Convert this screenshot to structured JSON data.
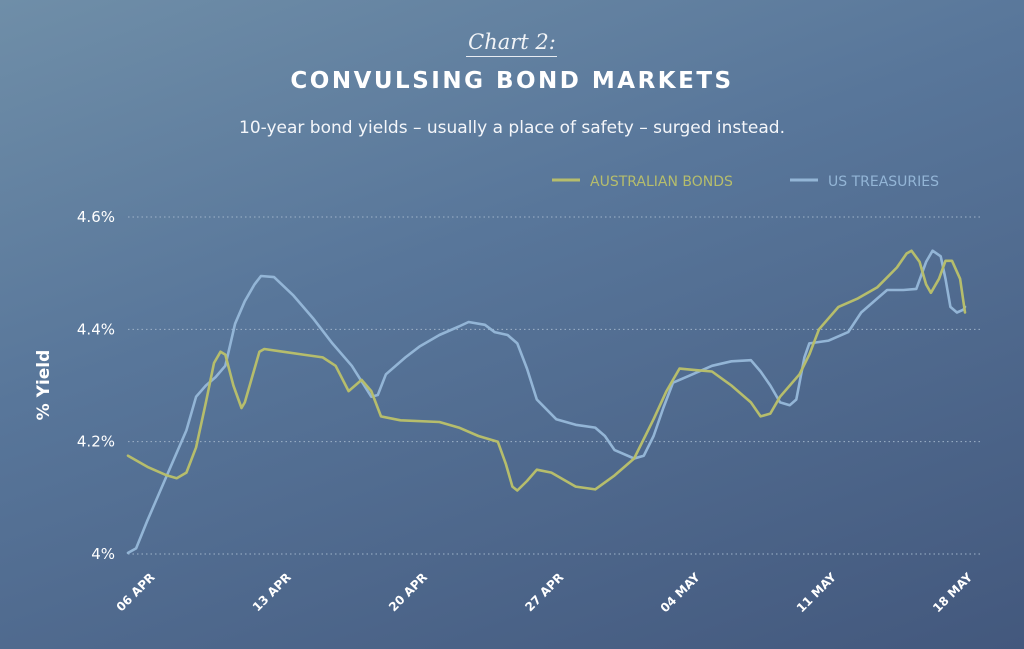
{
  "header": {
    "kicker": "Chart 2:",
    "title": "CONVULSING BOND MARKETS",
    "subtitle": "10-year bond yields – usually a place of safety – surged instead."
  },
  "colors": {
    "australian": "#b6bd6c",
    "us": "#93b5d6",
    "grid": "#9fb3c9",
    "background": "#55739a"
  },
  "chart_data": {
    "type": "line",
    "title": "CONVULSING BOND MARKETS",
    "ylabel": "% Yield",
    "xlabel": "",
    "ylim": [
      4.0,
      4.6
    ],
    "yticks": [
      4.0,
      4.2,
      4.4,
      4.6
    ],
    "ytick_labels": [
      "4%",
      "4.2%",
      "4.4%",
      "4.6%"
    ],
    "xlim": [
      "2025-04-05",
      "2025-05-18"
    ],
    "xticks": [
      "2025-04-06",
      "2025-04-13",
      "2025-04-20",
      "2025-04-27",
      "2025-05-04",
      "2025-05-11",
      "2025-05-18"
    ],
    "xtick_labels": [
      "06 APR",
      "13 APR",
      "20 APR",
      "27 APR",
      "04 MAY",
      "11 MAY",
      "18 MAY"
    ],
    "grid": true,
    "legend_position": "top-right",
    "series": [
      {
        "name": "AUSTRALIAN BONDS",
        "color": "#b6bd6c",
        "points": [
          [
            "2025-04-05",
            4.175
          ],
          [
            "2025-04-06",
            4.155
          ],
          [
            "2025-04-07",
            4.14
          ],
          [
            "2025-04-07 12:00",
            4.135
          ],
          [
            "2025-04-08",
            4.145
          ],
          [
            "2025-04-08 12:00",
            4.19
          ],
          [
            "2025-04-09",
            4.27
          ],
          [
            "2025-04-09 10:00",
            4.34
          ],
          [
            "2025-04-09 18:00",
            4.36
          ],
          [
            "2025-04-10",
            4.355
          ],
          [
            "2025-04-10 10:00",
            4.3
          ],
          [
            "2025-04-10 20:00",
            4.26
          ],
          [
            "2025-04-11",
            4.27
          ],
          [
            "2025-04-11 08:00",
            4.31
          ],
          [
            "2025-04-11 18:00",
            4.36
          ],
          [
            "2025-04-12",
            4.365
          ],
          [
            "2025-04-13",
            4.36
          ],
          [
            "2025-04-14",
            4.355
          ],
          [
            "2025-04-15",
            4.35
          ],
          [
            "2025-04-15 16:00",
            4.335
          ],
          [
            "2025-04-16 08:00",
            4.29
          ],
          [
            "2025-04-17",
            4.31
          ],
          [
            "2025-04-17 12:00",
            4.29
          ],
          [
            "2025-04-18",
            4.245
          ],
          [
            "2025-04-19",
            4.238
          ],
          [
            "2025-04-21",
            4.235
          ],
          [
            "2025-04-22",
            4.225
          ],
          [
            "2025-04-23",
            4.21
          ],
          [
            "2025-04-24",
            4.2
          ],
          [
            "2025-04-24 10:00",
            4.16
          ],
          [
            "2025-04-24 18:00",
            4.12
          ],
          [
            "2025-04-25",
            4.113
          ],
          [
            "2025-04-25 12:00",
            4.13
          ],
          [
            "2025-04-26",
            4.15
          ],
          [
            "2025-04-26 18:00",
            4.145
          ],
          [
            "2025-04-28",
            4.12
          ],
          [
            "2025-04-29",
            4.115
          ],
          [
            "2025-04-30",
            4.14
          ],
          [
            "2025-05-01",
            4.17
          ],
          [
            "2025-05-02",
            4.24
          ],
          [
            "2025-05-02 16:00",
            4.29
          ],
          [
            "2025-05-03 08:00",
            4.33
          ],
          [
            "2025-05-04",
            4.328
          ],
          [
            "2025-05-05",
            4.325
          ],
          [
            "2025-05-06",
            4.3
          ],
          [
            "2025-05-07",
            4.27
          ],
          [
            "2025-05-07 12:00",
            4.245
          ],
          [
            "2025-05-08",
            4.25
          ],
          [
            "2025-05-08 12:00",
            4.28
          ],
          [
            "2025-05-09 12:00",
            4.32
          ],
          [
            "2025-05-10",
            4.355
          ],
          [
            "2025-05-10 12:00",
            4.4
          ],
          [
            "2025-05-11 12:00",
            4.44
          ],
          [
            "2025-05-12 12:00",
            4.455
          ],
          [
            "2025-05-13 12:00",
            4.475
          ],
          [
            "2025-05-14 12:00",
            4.51
          ],
          [
            "2025-05-15",
            4.535
          ],
          [
            "2025-05-15 06:00",
            4.54
          ],
          [
            "2025-05-15 16:00",
            4.52
          ],
          [
            "2025-05-16",
            4.48
          ],
          [
            "2025-05-16 06:00",
            4.465
          ],
          [
            "2025-05-16 16:00",
            4.49
          ],
          [
            "2025-05-17",
            4.522
          ],
          [
            "2025-05-17 08:00",
            4.522
          ],
          [
            "2025-05-17 18:00",
            4.49
          ],
          [
            "2025-05-18",
            4.43
          ]
        ]
      },
      {
        "name": "US TREASURIES",
        "color": "#93b5d6",
        "points": [
          [
            "2025-04-05",
            4.002
          ],
          [
            "2025-04-05 10:00",
            4.01
          ],
          [
            "2025-04-06",
            4.06
          ],
          [
            "2025-04-07",
            4.14
          ],
          [
            "2025-04-08",
            4.22
          ],
          [
            "2025-04-08 12:00",
            4.28
          ],
          [
            "2025-04-09",
            4.3
          ],
          [
            "2025-04-09 12:00",
            4.315
          ],
          [
            "2025-04-10",
            4.335
          ],
          [
            "2025-04-10 12:00",
            4.41
          ],
          [
            "2025-04-11",
            4.45
          ],
          [
            "2025-04-11 12:00",
            4.48
          ],
          [
            "2025-04-11 20:00",
            4.495
          ],
          [
            "2025-04-12 12:00",
            4.493
          ],
          [
            "2025-04-13 12:00",
            4.46
          ],
          [
            "2025-04-14 12:00",
            4.42
          ],
          [
            "2025-04-15 12:00",
            4.375
          ],
          [
            "2025-04-16 12:00",
            4.335
          ],
          [
            "2025-04-17 12:00",
            4.28
          ],
          [
            "2025-04-17 20:00",
            4.283
          ],
          [
            "2025-04-18 06:00",
            4.32
          ],
          [
            "2025-04-19 06:00",
            4.35
          ],
          [
            "2025-04-20",
            4.37
          ],
          [
            "2025-04-21",
            4.39
          ],
          [
            "2025-04-22",
            4.405
          ],
          [
            "2025-04-22 12:00",
            4.413
          ],
          [
            "2025-04-23 08:00",
            4.408
          ],
          [
            "2025-04-23 20:00",
            4.395
          ],
          [
            "2025-04-24 12:00",
            4.39
          ],
          [
            "2025-04-25",
            4.375
          ],
          [
            "2025-04-25 12:00",
            4.33
          ],
          [
            "2025-04-26",
            4.275
          ],
          [
            "2025-04-27",
            4.24
          ],
          [
            "2025-04-28",
            4.23
          ],
          [
            "2025-04-29",
            4.225
          ],
          [
            "2025-04-29 12:00",
            4.21
          ],
          [
            "2025-04-30",
            4.185
          ],
          [
            "2025-05-01",
            4.17
          ],
          [
            "2025-05-01 12:00",
            4.175
          ],
          [
            "2025-05-02",
            4.21
          ],
          [
            "2025-05-02 12:00",
            4.26
          ],
          [
            "2025-05-03",
            4.305
          ],
          [
            "2025-05-04",
            4.32
          ],
          [
            "2025-05-05",
            4.335
          ],
          [
            "2025-05-06",
            4.343
          ],
          [
            "2025-05-07",
            4.345
          ],
          [
            "2025-05-07 12:00",
            4.325
          ],
          [
            "2025-05-08",
            4.3
          ],
          [
            "2025-05-08 12:00",
            4.27
          ],
          [
            "2025-05-09",
            4.265
          ],
          [
            "2025-05-09 08:00",
            4.275
          ],
          [
            "2025-05-09 18:00",
            4.35
          ],
          [
            "2025-05-10",
            4.375
          ],
          [
            "2025-05-11",
            4.38
          ],
          [
            "2025-05-12",
            4.395
          ],
          [
            "2025-05-12 16:00",
            4.43
          ],
          [
            "2025-05-13 12:00",
            4.455
          ],
          [
            "2025-05-14",
            4.47
          ],
          [
            "2025-05-14 20:00",
            4.47
          ],
          [
            "2025-05-15 12:00",
            4.472
          ],
          [
            "2025-05-16",
            4.52
          ],
          [
            "2025-05-16 08:00",
            4.54
          ],
          [
            "2025-05-16 18:00",
            4.53
          ],
          [
            "2025-05-17",
            4.49
          ],
          [
            "2025-05-17 06:00",
            4.44
          ],
          [
            "2025-05-17 14:00",
            4.43
          ],
          [
            "2025-05-17 22:00",
            4.435
          ],
          [
            "2025-05-18",
            4.44
          ]
        ]
      }
    ]
  }
}
